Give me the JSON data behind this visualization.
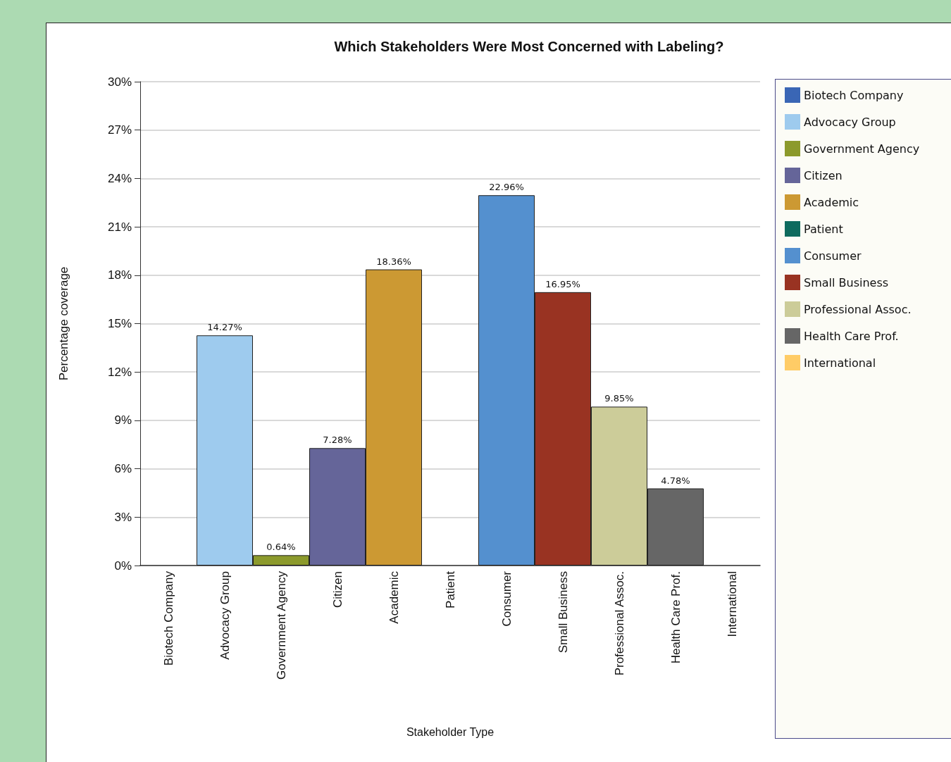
{
  "chart_data": {
    "type": "bar",
    "title": "Which Stakeholders Were Most Concerned with Labeling?",
    "xlabel": "Stakeholder Type",
    "ylabel": "Percentage coverage",
    "categories": [
      "Biotech Company",
      "Advocacy Group",
      "Government Agency",
      "Citizen",
      "Academic",
      "Patient",
      "Consumer",
      "Small Business",
      "Professional Assoc.",
      "Health Care Prof.",
      "International"
    ],
    "stacked": true,
    "series": [
      {
        "name": "Biotech Company",
        "color": "#3a66b5",
        "values": [
          0,
          null,
          null,
          null,
          null,
          null,
          null,
          null,
          null,
          null,
          null
        ],
        "value_labels": [
          null,
          null,
          null,
          null,
          null,
          null,
          null,
          null,
          null,
          null,
          null
        ]
      },
      {
        "name": "Advocacy Group",
        "color": "#9ecbee",
        "values": [
          null,
          14.27,
          null,
          null,
          null,
          null,
          null,
          null,
          null,
          null,
          null
        ],
        "value_labels": [
          null,
          "14.27%",
          null,
          null,
          null,
          null,
          null,
          null,
          null,
          null,
          null
        ]
      },
      {
        "name": "Government Agency",
        "color": "#8c9a2c",
        "values": [
          null,
          null,
          0.64,
          null,
          null,
          null,
          null,
          null,
          null,
          null,
          null
        ],
        "value_labels": [
          null,
          null,
          "0.64%",
          null,
          null,
          null,
          null,
          null,
          null,
          null,
          null
        ]
      },
      {
        "name": "Citizen",
        "color": "#656599",
        "values": [
          null,
          null,
          null,
          7.28,
          null,
          null,
          null,
          null,
          null,
          null,
          null
        ],
        "value_labels": [
          null,
          null,
          null,
          "7.28%",
          null,
          null,
          null,
          null,
          null,
          null,
          null
        ]
      },
      {
        "name": "Academic",
        "color": "#cc9933",
        "values": [
          null,
          null,
          null,
          null,
          18.36,
          null,
          null,
          null,
          null,
          null,
          null
        ],
        "value_labels": [
          null,
          null,
          null,
          null,
          "18.36%",
          null,
          null,
          null,
          null,
          null,
          null
        ]
      },
      {
        "name": "Patient",
        "color": "#0e6b5e",
        "values": [
          null,
          null,
          null,
          null,
          null,
          0,
          null,
          null,
          null,
          null,
          null
        ],
        "value_labels": [
          null,
          null,
          null,
          null,
          null,
          null,
          null,
          null,
          null,
          null,
          null
        ]
      },
      {
        "name": "Consumer",
        "color": "#5490cf",
        "values": [
          null,
          null,
          null,
          null,
          null,
          null,
          22.96,
          null,
          null,
          null,
          null
        ],
        "value_labels": [
          null,
          null,
          null,
          null,
          null,
          null,
          "22.96%",
          null,
          null,
          null,
          null
        ]
      },
      {
        "name": "Small Business",
        "color": "#993322",
        "values": [
          null,
          null,
          null,
          null,
          null,
          null,
          null,
          16.95,
          null,
          null,
          null
        ],
        "value_labels": [
          null,
          null,
          null,
          null,
          null,
          null,
          null,
          "16.95%",
          null,
          null,
          null
        ]
      },
      {
        "name": "Professional Assoc.",
        "color": "#cccc99",
        "values": [
          null,
          null,
          null,
          null,
          null,
          null,
          null,
          null,
          9.85,
          null,
          null
        ],
        "value_labels": [
          null,
          null,
          null,
          null,
          null,
          null,
          null,
          null,
          "9.85%",
          null,
          null
        ]
      },
      {
        "name": "Health Care Prof.",
        "color": "#666666",
        "values": [
          null,
          null,
          null,
          null,
          null,
          null,
          null,
          null,
          null,
          4.78,
          null
        ],
        "value_labels": [
          null,
          null,
          null,
          null,
          null,
          null,
          null,
          null,
          null,
          "4.78%",
          null
        ]
      },
      {
        "name": "International",
        "color": "#ffcc66",
        "values": [
          null,
          null,
          null,
          null,
          null,
          null,
          null,
          null,
          null,
          null,
          0
        ],
        "value_labels": [
          null,
          null,
          null,
          null,
          null,
          null,
          null,
          null,
          null,
          null,
          null
        ]
      }
    ],
    "ylim": [
      0,
      30
    ],
    "yticks": [
      {
        "value": 0,
        "label": "0%"
      },
      {
        "value": 3,
        "label": "3%"
      },
      {
        "value": 6,
        "label": "6%"
      },
      {
        "value": 9,
        "label": "9%"
      },
      {
        "value": 12,
        "label": "12%"
      },
      {
        "value": 15,
        "label": "15%"
      },
      {
        "value": 18,
        "label": "18%"
      },
      {
        "value": 21,
        "label": "21%"
      },
      {
        "value": 24,
        "label": "24%"
      },
      {
        "value": 27,
        "label": "27%"
      },
      {
        "value": 30,
        "label": "30%"
      }
    ],
    "grid": "y",
    "legend": "right"
  }
}
